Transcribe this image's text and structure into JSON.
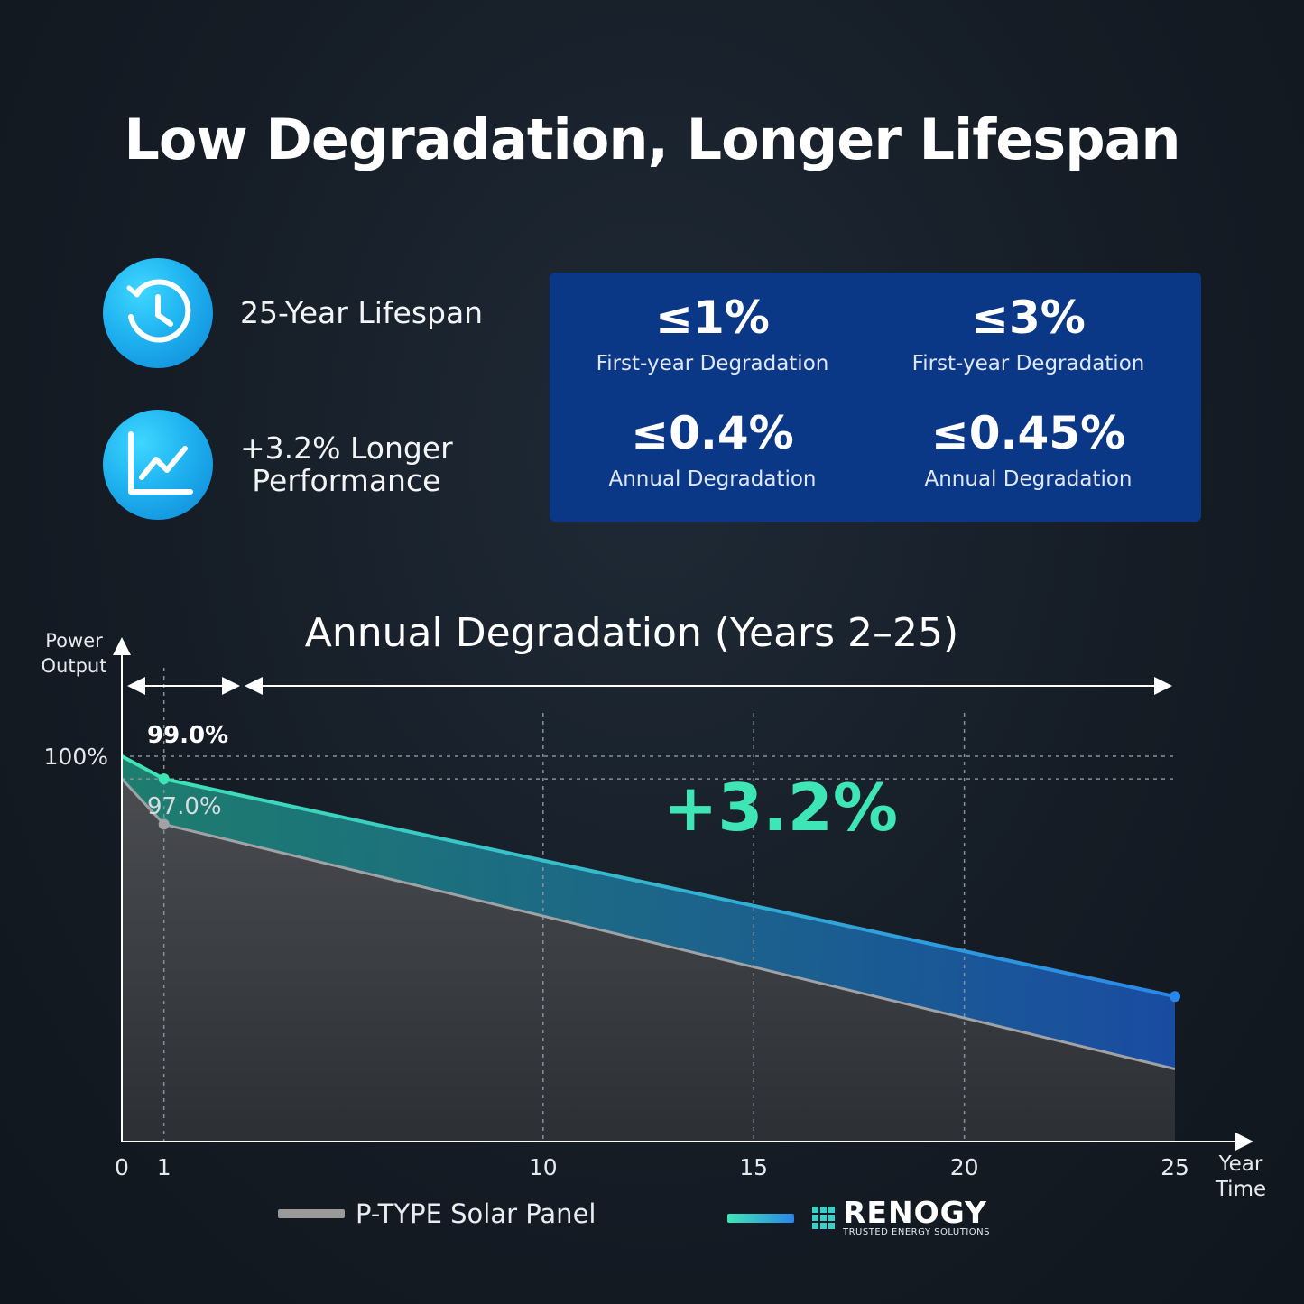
{
  "title": "Low Degradation, Longer Lifespan",
  "features": [
    {
      "icon": "clock-icon",
      "text": "25-Year Lifespan"
    },
    {
      "icon": "line-chart-icon",
      "line1": "+3.2% Longer",
      "line2": "Performance"
    }
  ],
  "stats": [
    {
      "value": "≤1%",
      "label": "First-year Degradation"
    },
    {
      "value": "≤3%",
      "label": "First-year Degradation"
    },
    {
      "value": "≤0.4%",
      "label": "Annual Degradation"
    },
    {
      "value": "≤0.45%",
      "label": "Annual Degradation"
    }
  ],
  "colors": {
    "stats_box": "#0b3787",
    "renogy_start": "#3ee6b6",
    "renogy_end": "#2a86e8",
    "ptype": "#9a9a9a",
    "highlight": "#3ee6b6"
  },
  "chart_data": {
    "type": "line",
    "title": "Annual Degradation (Years 2–25)",
    "ylabel_lines": [
      "Power",
      "Output"
    ],
    "xlabel_lines": [
      "Year",
      "Time"
    ],
    "x_ticks": [
      0,
      1,
      10,
      15,
      20,
      25
    ],
    "y_tick_label": "100%",
    "xlim": [
      0,
      25
    ],
    "ylim": [
      83,
      100
    ],
    "series": [
      {
        "name": "Renogy",
        "x": [
          0,
          1,
          25
        ],
        "y": [
          100,
          99.0,
          89.4
        ]
      },
      {
        "name": "P-TYPE Solar Panel",
        "x": [
          0,
          1,
          25
        ],
        "y": [
          99.0,
          97.0,
          86.2
        ]
      }
    ],
    "annotations": {
      "renogy_year1": "99.0%",
      "ptype_year1": "97.0%",
      "difference": "+3.2%"
    },
    "grid": "vertical dashed at x=1,10,15,20; horizontal dashed at 100% and 99.0%"
  },
  "legend": {
    "ptype_label": "P-TYPE Solar Panel",
    "brand_name": "RENOGY",
    "brand_tagline": "TRUSTED ENERGY SOLUTIONS"
  }
}
